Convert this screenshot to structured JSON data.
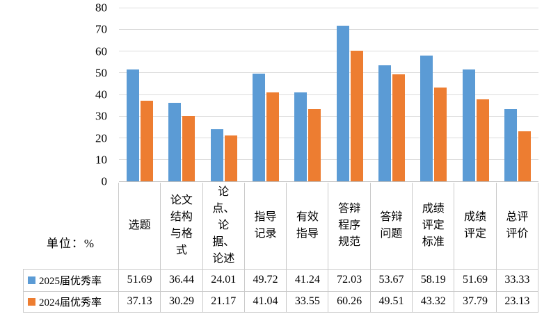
{
  "chart_data": {
    "type": "bar",
    "title": "",
    "unit_label": "单位：%",
    "categories": [
      "选题",
      "论文结构与格式",
      "论点、论据、论述",
      "指导记录",
      "有效指导",
      "答辩程序规范",
      "答辩问题",
      "成绩评定标准",
      "成绩评定",
      "总评评价"
    ],
    "series": [
      {
        "name": "2025届优秀率",
        "color": "#5B9BD5",
        "values": [
          51.69,
          36.44,
          24.01,
          49.72,
          41.24,
          72.03,
          53.67,
          58.19,
          51.69,
          33.33
        ]
      },
      {
        "name": "2024届优秀率",
        "color": "#ED7D31",
        "values": [
          37.13,
          30.29,
          21.17,
          41.04,
          33.55,
          60.26,
          49.51,
          43.32,
          37.79,
          23.13
        ]
      }
    ],
    "yticks": [
      0,
      10,
      20,
      30,
      40,
      50,
      60,
      70,
      80
    ],
    "ylim": [
      0,
      80
    ],
    "grid": true,
    "legend_position": "bottom-table",
    "colors": {
      "gridline": "#DCDCDC",
      "axis_line": "#BFBFBF",
      "table_border": "#C9C9C9"
    }
  }
}
